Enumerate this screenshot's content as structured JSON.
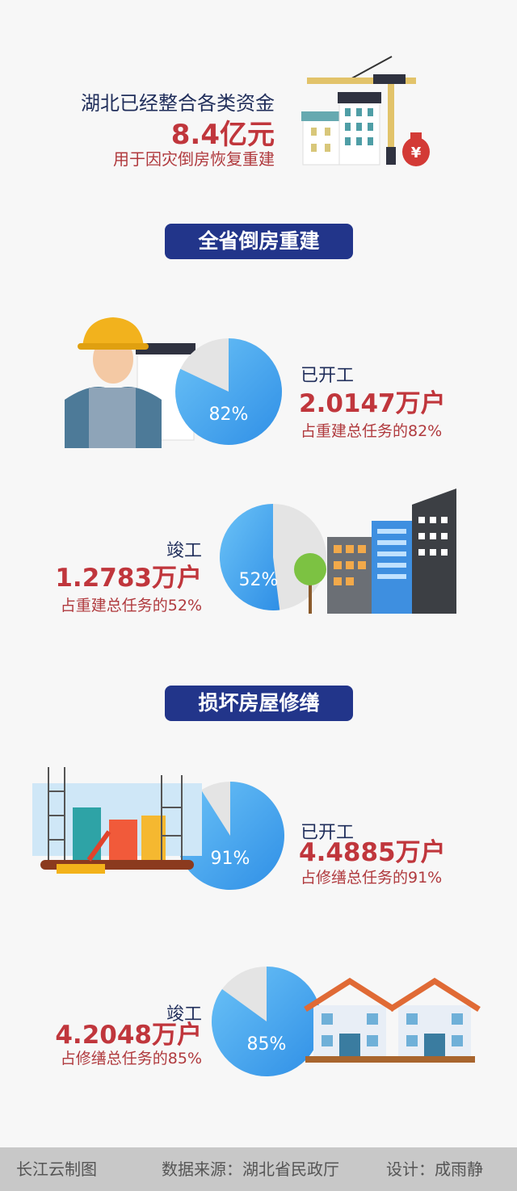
{
  "intro": {
    "line1": "湖北已经整合各类资金",
    "amount": "8.4亿元",
    "line3": "用于因灾倒房恢复重建",
    "money_symbol": "¥"
  },
  "section1": {
    "title": "全省倒房重建"
  },
  "section2": {
    "title": "损坏房屋修缮"
  },
  "stats": [
    {
      "label": "已开工",
      "value": "2.0147万户",
      "note": "占重建总任务的82%",
      "percent": 82,
      "pie_label": "82%"
    },
    {
      "label": "竣工",
      "value": "1.2783万户",
      "note": "占重建总任务的52%",
      "percent": 52,
      "pie_label": "52%"
    },
    {
      "label": "已开工",
      "value": "4.4885万户",
      "note": "占修缮总任务的91%",
      "percent": 91,
      "pie_label": "91%"
    },
    {
      "label": "竣工",
      "value": "4.2048万户",
      "note": "占修缮总任务的85%",
      "percent": 85,
      "pie_label": "85%"
    }
  ],
  "footer": {
    "brand": "长江云制图",
    "source": "数据来源：湖北省民政厅",
    "design": "设计：成雨静"
  },
  "colors": {
    "navy": "#22358a",
    "red": "#c0363c",
    "pie_blue": "#3ea7f0",
    "pie_grey": "#e4e4e4"
  }
}
